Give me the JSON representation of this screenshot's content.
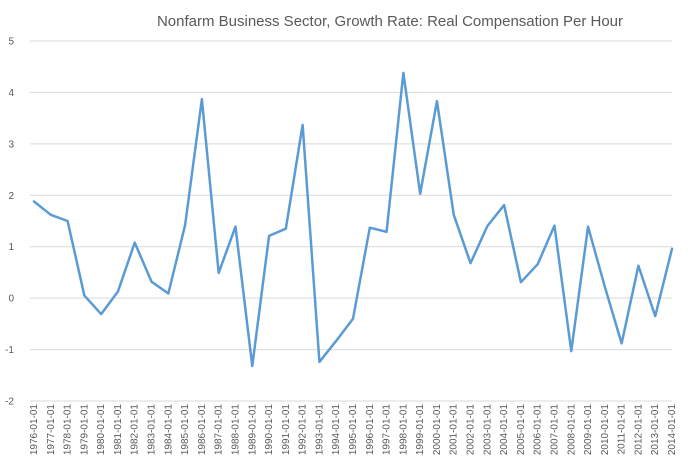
{
  "chart_data": {
    "type": "line",
    "title": "Nonfarm Business Sector, Growth Rate: Real Compensation Per Hour",
    "xlabel": "",
    "ylabel": "",
    "ylim": [
      -2,
      5
    ],
    "yticks": [
      -2,
      -1,
      0,
      1,
      2,
      3,
      4,
      5
    ],
    "grid": true,
    "legend": "none",
    "line_color": "#5B9BD5",
    "categories": [
      "1976-01-01",
      "1977-01-01",
      "1978-01-01",
      "1979-01-01",
      "1980-01-01",
      "1981-01-01",
      "1982-01-01",
      "1983-01-01",
      "1984-01-01",
      "1985-01-01",
      "1986-01-01",
      "1987-01-01",
      "1988-01-01",
      "1989-01-01",
      "1990-01-01",
      "1991-01-01",
      "1992-01-01",
      "1993-01-01",
      "1994-01-01",
      "1995-01-01",
      "1996-01-01",
      "1997-01-01",
      "1998-01-01",
      "1999-01-01",
      "2000-01-01",
      "2001-01-01",
      "2002-01-01",
      "2003-01-01",
      "2004-01-01",
      "2005-01-01",
      "2006-01-01",
      "2007-01-01",
      "2008-01-01",
      "2009-01-01",
      "2010-01-01",
      "2011-01-01",
      "2012-01-01",
      "2013-01-01",
      "2014-01-01"
    ],
    "series": [
      {
        "values": [
          1.88,
          1.62,
          1.5,
          0.05,
          -0.31,
          0.13,
          1.08,
          0.32,
          0.09,
          1.42,
          3.87,
          0.49,
          1.39,
          -1.32,
          1.21,
          1.35,
          3.37,
          -1.24,
          -0.83,
          -0.4,
          1.37,
          1.29,
          4.38,
          2.03,
          3.83,
          1.62,
          0.68,
          1.4,
          1.81,
          0.31,
          0.66,
          1.41,
          -1.03,
          1.39,
          0.22,
          -0.88,
          0.63,
          -0.35,
          0.96
        ]
      }
    ]
  }
}
